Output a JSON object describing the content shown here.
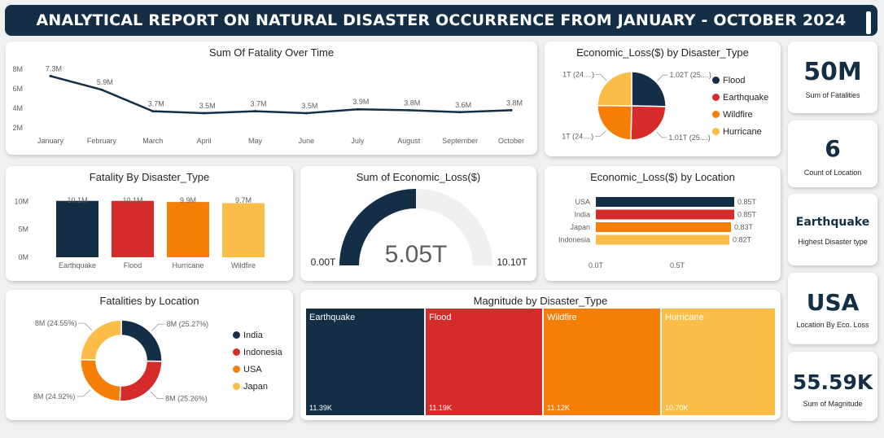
{
  "header": {
    "title": "ANALYTICAL REPORT ON NATURAL DISASTER OCCURRENCE FROM JANUARY - OCTOBER 2024"
  },
  "colors": {
    "navy": "#142e45",
    "red": "#d62b2b",
    "orange": "#f57e07",
    "yellow": "#fbbd47"
  },
  "line_chart": {
    "title": "Sum Of Fatality Over Time",
    "chart_data": {
      "type": "line",
      "categories": [
        "January",
        "February",
        "March",
        "April",
        "May",
        "June",
        "July",
        "August",
        "September",
        "October"
      ],
      "values": [
        7.3,
        5.9,
        3.7,
        3.5,
        3.7,
        3.5,
        3.9,
        3.8,
        3.6,
        3.8
      ],
      "data_labels": [
        "7.3M",
        "5.9M",
        "3.7M",
        "3.5M",
        "3.7M",
        "3.5M",
        "3.9M",
        "3.8M",
        "3.6M",
        "3.8M"
      ],
      "y_ticks": [
        2,
        4,
        6,
        8
      ],
      "y_tick_labels": [
        "2M",
        "4M",
        "6M",
        "8M"
      ],
      "ylim": [
        1.5,
        8.5
      ],
      "grid": false
    }
  },
  "pie_econ_type": {
    "title": "Economic_Loss($) by Disaster_Type",
    "chart_data": {
      "type": "pie",
      "labels": [
        "Flood",
        "Earthquake",
        "Wildfire",
        "Hurricane"
      ],
      "values": [
        1.02,
        1.01,
        1.0,
        1.0
      ],
      "slice_labels": [
        "1.02T (25....)",
        "1.01T (25....)",
        "1T (24....)",
        "1T (24....)"
      ],
      "colors": [
        "#142e45",
        "#d62b2b",
        "#f57e07",
        "#fbbd47"
      ],
      "legend": "right"
    }
  },
  "kpis": [
    {
      "value": "50M",
      "label": "Sum of Fatalities"
    },
    {
      "value": "6",
      "label": "Count of Location"
    },
    {
      "value": "Earthquake",
      "label": "Highest Disaster type"
    },
    {
      "value": "USA",
      "label": "Location By Eco. Loss"
    },
    {
      "value": "55.59K",
      "label": "Sum of Magnitude"
    }
  ],
  "bar_fatality": {
    "title": "Fatality By Disaster_Type",
    "chart_data": {
      "type": "bar",
      "categories": [
        "Earthquake",
        "Flood",
        "Hurricane",
        "Wildfire"
      ],
      "values": [
        10.1,
        10.1,
        9.9,
        9.7
      ],
      "data_labels": [
        "10.1M",
        "10.1M",
        "9.9M",
        "9.7M"
      ],
      "colors": [
        "#142e45",
        "#d62b2b",
        "#f57e07",
        "#fbbd47"
      ],
      "y_ticks": [
        0,
        5,
        10
      ],
      "y_tick_labels": [
        "0M",
        "5M",
        "10M"
      ],
      "ylim": [
        0,
        10.5
      ]
    }
  },
  "gauge": {
    "title": "Sum of Economic_Loss($)",
    "chart_data": {
      "type": "gauge",
      "value": 5.05,
      "min": 0,
      "max": 10.1
    },
    "value_label": "5.05T",
    "min_label": "0.00T",
    "max_label": "10.10T"
  },
  "hbar_location": {
    "title": "Economic_Loss($) by Location",
    "chart_data": {
      "type": "bar",
      "orientation": "horizontal",
      "categories": [
        "USA",
        "India",
        "Japan",
        "Indonesia"
      ],
      "values": [
        0.85,
        0.85,
        0.83,
        0.82
      ],
      "data_labels": [
        "0.85T",
        "0.85T",
        "0.83T",
        "0.82T"
      ],
      "colors": [
        "#142e45",
        "#d62b2b",
        "#f57e07",
        "#fbbd47"
      ],
      "x_ticks": [
        0,
        0.5
      ],
      "x_tick_labels": [
        "0.0T",
        "0.5T"
      ],
      "xlim": [
        0,
        0.9
      ]
    }
  },
  "donut_location": {
    "title": "Fatalities by Location",
    "chart_data": {
      "type": "pie",
      "donut": true,
      "labels": [
        "India",
        "Indonesia",
        "USA",
        "Japan"
      ],
      "values": [
        25.27,
        25.26,
        24.92,
        24.55
      ],
      "slice_labels": [
        "8M (25.27%)",
        "8M (25.26%)",
        "8M (24.92%)",
        "8M (24.55%)"
      ],
      "colors": [
        "#142e45",
        "#d62b2b",
        "#f57e07",
        "#fbbd47"
      ],
      "legend": "right"
    }
  },
  "treemap": {
    "title": "Magnitude by Disaster_Type",
    "chart_data": {
      "type": "treemap",
      "categories": [
        "Earthquake",
        "Flood",
        "Wildfire",
        "Hurricane"
      ],
      "values": [
        11.39,
        11.19,
        11.12,
        10.7
      ],
      "data_labels": [
        "11.39K",
        "11.19K",
        "11.12K",
        "10.70K"
      ],
      "colors": [
        "#142e45",
        "#d62b2b",
        "#f57e07",
        "#fbbd47"
      ]
    }
  }
}
